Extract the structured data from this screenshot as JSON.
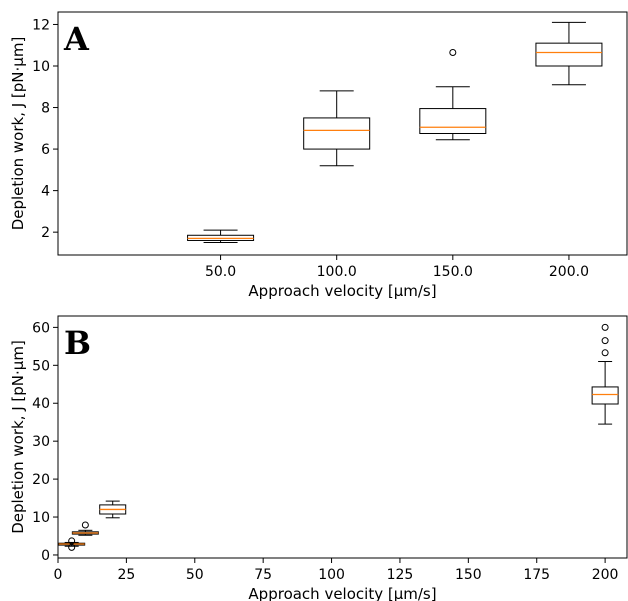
{
  "chart_data": [
    {
      "type": "boxplot",
      "panel_label": "A",
      "xlabel": "Approach velocity [μm/s]",
      "ylabel": "Depletion work, J [pN·μm]",
      "x_axis": "categorical",
      "categories": [
        "50.0",
        "100.0",
        "150.0",
        "200.0"
      ],
      "ylim": [
        0.9,
        12.6
      ],
      "yticks": [
        2,
        4,
        6,
        8,
        10,
        12
      ],
      "boxes": [
        {
          "label": "50.0",
          "whisker_low": 1.5,
          "q1": 1.6,
          "median": 1.7,
          "q3": 1.85,
          "whisker_high": 2.1,
          "fliers": []
        },
        {
          "label": "100.0",
          "whisker_low": 5.2,
          "q1": 6.0,
          "median": 6.9,
          "q3": 7.5,
          "whisker_high": 8.8,
          "fliers": []
        },
        {
          "label": "150.0",
          "whisker_low": 6.45,
          "q1": 6.75,
          "median": 7.05,
          "q3": 7.95,
          "whisker_high": 9.0,
          "fliers": [
            10.65
          ]
        },
        {
          "label": "200.0",
          "whisker_low": 9.1,
          "q1": 10.0,
          "median": 10.65,
          "q3": 11.1,
          "whisker_high": 12.1,
          "fliers": []
        }
      ],
      "grid": false,
      "median_color": "#ff7f0e",
      "box_color": "#000000"
    },
    {
      "type": "boxplot",
      "panel_label": "B",
      "xlabel": "Approach velocity [μm/s]",
      "ylabel": "Depletion work, J [pN·μm]",
      "x_axis": "numeric",
      "xlim": [
        0,
        208
      ],
      "xticks": [
        0,
        25,
        50,
        75,
        100,
        125,
        150,
        175,
        200
      ],
      "ylim": [
        -0.8,
        63
      ],
      "yticks": [
        0,
        10,
        20,
        30,
        40,
        50,
        60
      ],
      "boxes": [
        {
          "position": 5,
          "whisker_low": 2.3,
          "q1": 2.6,
          "median": 2.9,
          "q3": 3.1,
          "whisker_high": 3.3,
          "fliers": [
            2.0,
            3.7
          ]
        },
        {
          "position": 10,
          "whisker_low": 5.2,
          "q1": 5.5,
          "median": 5.8,
          "q3": 6.1,
          "whisker_high": 6.5,
          "fliers": [
            7.9
          ]
        },
        {
          "position": 20,
          "whisker_low": 9.8,
          "q1": 10.8,
          "median": 12.0,
          "q3": 13.2,
          "whisker_high": 14.2,
          "fliers": []
        },
        {
          "position": 200,
          "whisker_low": 34.5,
          "q1": 39.8,
          "median": 42.3,
          "q3": 44.3,
          "whisker_high": 51.0,
          "fliers": [
            53.3,
            56.5,
            60.0
          ]
        }
      ],
      "grid": false,
      "median_color": "#ff7f0e",
      "box_color": "#000000"
    }
  ]
}
